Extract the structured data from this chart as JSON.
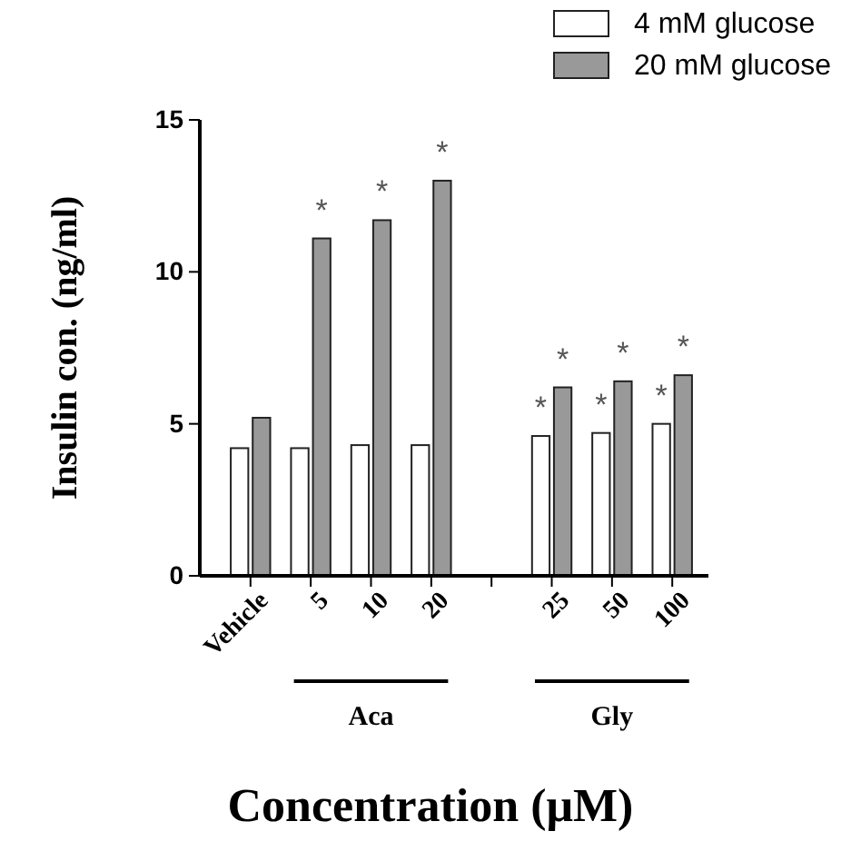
{
  "chart_data": {
    "type": "bar",
    "xlabel": "Concentration (μM)",
    "ylabel": "Insulin con. (ng/ml)",
    "categories": [
      "Vehicle",
      "5",
      "10",
      "20",
      null,
      "25",
      "50",
      "100"
    ],
    "series": [
      {
        "name": "4 mM glucose",
        "color": "#ffffff",
        "values": [
          4.2,
          4.2,
          4.3,
          4.3,
          null,
          4.6,
          4.7,
          5.0
        ]
      },
      {
        "name": "20 mM glucose",
        "color": "#999999",
        "values": [
          5.2,
          11.1,
          11.7,
          13.0,
          null,
          6.2,
          6.4,
          6.6
        ]
      }
    ],
    "ylim": [
      0,
      15
    ],
    "yticks": [
      0,
      5,
      10,
      15
    ],
    "grid": false,
    "legend": "top right",
    "annotations": [
      "Aca",
      "Gly",
      {
        "text": "*",
        "x": "5",
        "y": 11.1
      },
      {
        "text": "*",
        "x": "10",
        "y": 11.7
      },
      {
        "text": "*",
        "x": "20",
        "y": 13.0
      },
      {
        "text": "*",
        "x": "25",
        "y": 4.6
      },
      {
        "text": "*",
        "x": "25",
        "y": 6.2
      },
      {
        "text": "*",
        "x": "50",
        "y": 4.7
      },
      {
        "text": "*",
        "x": "50",
        "y": 6.4
      },
      {
        "text": "*",
        "x": "100",
        "y": 5.0
      },
      {
        "text": "*",
        "x": "100",
        "y": 6.6
      }
    ]
  }
}
